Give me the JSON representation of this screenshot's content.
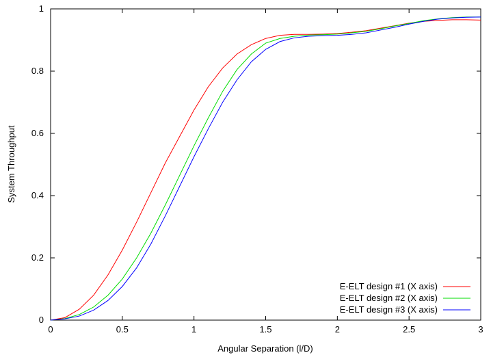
{
  "chart_data": {
    "type": "line",
    "title": "",
    "xlabel": "Angular Separation (l/D)",
    "ylabel": "System Throughput",
    "xlim": [
      0,
      3
    ],
    "ylim": [
      0,
      1
    ],
    "x_ticks": [
      "0",
      "0.5",
      "1",
      "1.5",
      "2",
      "2.5",
      "3"
    ],
    "y_ticks": [
      "0",
      "0.2",
      "0.4",
      "0.6",
      "0.8",
      "1"
    ],
    "grid": false,
    "legend_position": "bottom-right",
    "x": [
      0,
      0.1,
      0.2,
      0.3,
      0.4,
      0.5,
      0.6,
      0.7,
      0.8,
      0.9,
      1.0,
      1.1,
      1.2,
      1.3,
      1.4,
      1.5,
      1.6,
      1.7,
      1.8,
      1.9,
      2.0,
      2.1,
      2.2,
      2.3,
      2.4,
      2.5,
      2.6,
      2.7,
      2.8,
      2.9,
      3.0
    ],
    "series": [
      {
        "name": "E-ELT design #1 (X axis)",
        "color": "#ff0000",
        "values": [
          0.0,
          0.008,
          0.035,
          0.08,
          0.145,
          0.225,
          0.315,
          0.41,
          0.505,
          0.59,
          0.675,
          0.75,
          0.81,
          0.855,
          0.885,
          0.905,
          0.915,
          0.918,
          0.918,
          0.919,
          0.921,
          0.925,
          0.93,
          0.938,
          0.946,
          0.954,
          0.96,
          0.963,
          0.965,
          0.965,
          0.964
        ]
      },
      {
        "name": "E-ELT design #2 (X axis)",
        "color": "#00dd00",
        "values": [
          0.0,
          0.005,
          0.018,
          0.042,
          0.08,
          0.132,
          0.2,
          0.28,
          0.37,
          0.465,
          0.56,
          0.65,
          0.735,
          0.805,
          0.855,
          0.89,
          0.905,
          0.912,
          0.916,
          0.917,
          0.919,
          0.923,
          0.928,
          0.936,
          0.945,
          0.953,
          0.962,
          0.968,
          0.972,
          0.974,
          0.974
        ]
      },
      {
        "name": "E-ELT design #3 (X axis)",
        "color": "#0000ff",
        "values": [
          0.0,
          0.004,
          0.013,
          0.032,
          0.063,
          0.108,
          0.168,
          0.245,
          0.335,
          0.43,
          0.525,
          0.615,
          0.7,
          0.772,
          0.83,
          0.87,
          0.895,
          0.907,
          0.912,
          0.914,
          0.915,
          0.918,
          0.923,
          0.932,
          0.941,
          0.951,
          0.96,
          0.967,
          0.971,
          0.973,
          0.974
        ]
      }
    ]
  }
}
